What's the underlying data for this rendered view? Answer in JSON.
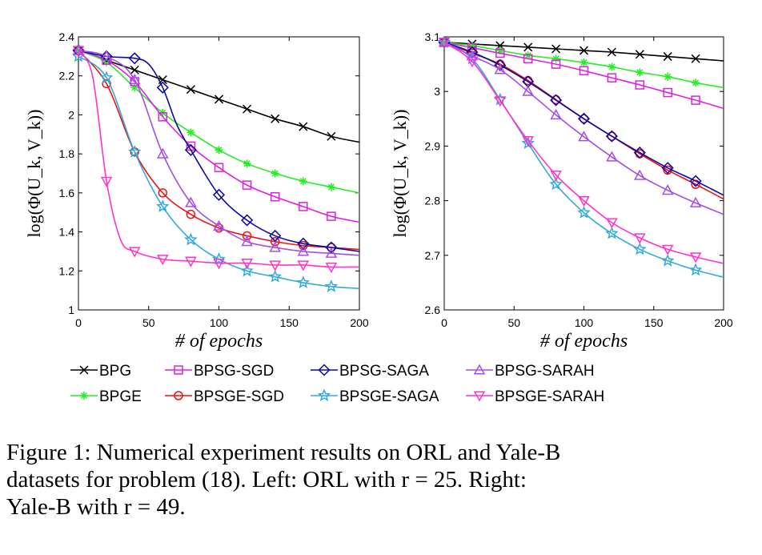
{
  "chart_data": [
    {
      "type": "line",
      "ylabel": "log(Φ(U_k, V_k))",
      "xlabel": "# of epochs",
      "xlim": [
        0,
        200
      ],
      "ylim": [
        1,
        2.4
      ],
      "xticks": [
        0,
        50,
        100,
        150,
        200
      ],
      "yticks": [
        1,
        1.2,
        1.4,
        1.6,
        1.8,
        2,
        2.2,
        2.4
      ],
      "ytick_labels": [
        "1",
        "1.2",
        "1.4",
        "1.6",
        "1.8",
        "2",
        "2.2",
        "2.4"
      ],
      "grid": false,
      "series": [
        {
          "name": "BPG",
          "x": [
            0,
            20,
            40,
            60,
            80,
            100,
            120,
            140,
            160,
            180,
            200
          ],
          "y": [
            2.33,
            2.28,
            2.23,
            2.18,
            2.13,
            2.08,
            2.03,
            1.98,
            1.94,
            1.89,
            1.86
          ]
        },
        {
          "name": "BPGE",
          "x": [
            0,
            20,
            40,
            60,
            80,
            100,
            120,
            140,
            160,
            180,
            200
          ],
          "y": [
            2.33,
            2.27,
            2.14,
            2.01,
            1.91,
            1.82,
            1.75,
            1.7,
            1.66,
            1.63,
            1.6
          ]
        },
        {
          "name": "BPSG-SGD",
          "x": [
            0,
            20,
            40,
            60,
            80,
            100,
            120,
            140,
            160,
            180,
            200
          ],
          "y": [
            2.33,
            2.28,
            2.17,
            1.99,
            1.84,
            1.73,
            1.64,
            1.58,
            1.53,
            1.48,
            1.45
          ]
        },
        {
          "name": "BPSGE-SGD",
          "x": [
            0,
            20,
            40,
            60,
            80,
            100,
            120,
            140,
            160,
            180,
            200
          ],
          "y": [
            2.33,
            2.16,
            1.81,
            1.6,
            1.49,
            1.42,
            1.38,
            1.35,
            1.33,
            1.32,
            1.31
          ]
        },
        {
          "name": "BPSG-SAGA",
          "x": [
            0,
            20,
            40,
            50,
            60,
            70,
            80,
            100,
            120,
            140,
            160,
            180,
            200
          ],
          "y": [
            2.33,
            2.3,
            2.29,
            2.26,
            2.14,
            1.95,
            1.82,
            1.59,
            1.46,
            1.38,
            1.34,
            1.32,
            1.3
          ]
        },
        {
          "name": "BPSGE-SAGA",
          "x": [
            0,
            20,
            40,
            60,
            80,
            100,
            120,
            140,
            160,
            180,
            200
          ],
          "y": [
            2.3,
            2.19,
            1.81,
            1.53,
            1.36,
            1.26,
            1.2,
            1.17,
            1.14,
            1.12,
            1.11
          ]
        },
        {
          "name": "BPSG-SARAH",
          "x": [
            0,
            20,
            40,
            60,
            80,
            100,
            120,
            140,
            160,
            180,
            200
          ],
          "y": [
            2.33,
            2.3,
            2.18,
            1.8,
            1.55,
            1.43,
            1.35,
            1.32,
            1.3,
            1.29,
            1.28
          ]
        },
        {
          "name": "BPSGE-SARAH",
          "x": [
            0,
            10,
            20,
            30,
            40,
            60,
            80,
            100,
            120,
            140,
            160,
            180,
            200
          ],
          "y": [
            2.33,
            2.2,
            1.66,
            1.36,
            1.3,
            1.26,
            1.25,
            1.24,
            1.24,
            1.23,
            1.23,
            1.22,
            1.22
          ]
        }
      ]
    },
    {
      "type": "line",
      "ylabel": "log(Φ(U_k, V_k))",
      "xlabel": "# of epochs",
      "xlim": [
        0,
        200
      ],
      "ylim": [
        2.6,
        3.1
      ],
      "xticks": [
        0,
        50,
        100,
        150,
        200
      ],
      "yticks": [
        2.6,
        2.7,
        2.8,
        2.9,
        3,
        3.1
      ],
      "ytick_labels": [
        "2.6",
        "2.7",
        "2.8",
        "2.9",
        "3",
        "3.1"
      ],
      "grid": false,
      "series": [
        {
          "name": "BPG",
          "x": [
            0,
            20,
            40,
            60,
            80,
            100,
            120,
            140,
            160,
            180,
            200
          ],
          "y": [
            3.09,
            3.087,
            3.084,
            3.081,
            3.078,
            3.075,
            3.072,
            3.068,
            3.064,
            3.06,
            3.056
          ]
        },
        {
          "name": "BPGE",
          "x": [
            0,
            20,
            40,
            60,
            80,
            100,
            120,
            140,
            160,
            180,
            200
          ],
          "y": [
            3.09,
            3.084,
            3.075,
            3.066,
            3.06,
            3.053,
            3.045,
            3.035,
            3.027,
            3.016,
            3.007
          ]
        },
        {
          "name": "BPSG-SGD",
          "x": [
            0,
            20,
            40,
            60,
            80,
            100,
            120,
            140,
            160,
            180,
            200
          ],
          "y": [
            3.09,
            3.08,
            3.07,
            3.06,
            3.05,
            3.038,
            3.025,
            3.012,
            2.998,
            2.984,
            2.969
          ]
        },
        {
          "name": "BPSGE-SGD",
          "x": [
            0,
            20,
            40,
            60,
            80,
            100,
            120,
            140,
            160,
            180,
            200
          ],
          "y": [
            3.09,
            3.07,
            3.05,
            3.02,
            2.985,
            2.95,
            2.918,
            2.886,
            2.856,
            2.83,
            2.803
          ]
        },
        {
          "name": "BPSG-SAGA",
          "x": [
            0,
            20,
            40,
            60,
            80,
            100,
            120,
            140,
            160,
            180,
            200
          ],
          "y": [
            3.09,
            3.072,
            3.048,
            3.018,
            2.984,
            2.95,
            2.918,
            2.888,
            2.86,
            2.836,
            2.81
          ]
        },
        {
          "name": "BPSGE-SAGA",
          "x": [
            0,
            20,
            40,
            60,
            80,
            100,
            120,
            140,
            160,
            180,
            200
          ],
          "y": [
            3.09,
            3.06,
            2.985,
            2.905,
            2.83,
            2.778,
            2.74,
            2.711,
            2.69,
            2.673,
            2.66
          ]
        },
        {
          "name": "BPSG-SARAH",
          "x": [
            0,
            20,
            40,
            60,
            80,
            100,
            120,
            140,
            160,
            180,
            200
          ],
          "y": [
            3.09,
            3.065,
            3.04,
            3.0,
            2.957,
            2.917,
            2.88,
            2.846,
            2.819,
            2.796,
            2.775
          ]
        },
        {
          "name": "BPSGE-SARAH",
          "x": [
            0,
            20,
            40,
            60,
            80,
            100,
            120,
            140,
            160,
            180,
            200
          ],
          "y": [
            3.09,
            3.055,
            2.983,
            2.91,
            2.847,
            2.8,
            2.76,
            2.732,
            2.711,
            2.697,
            2.685
          ]
        }
      ]
    }
  ],
  "legend": [
    {
      "name": "BPG",
      "label": "BPG",
      "color": "#000000",
      "marker": "x"
    },
    {
      "name": "BPSG-SGD",
      "label": "BPSG-SGD",
      "color": "#e020e0",
      "marker": "square"
    },
    {
      "name": "BPSG-SAGA",
      "label": "BPSG-SAGA",
      "color": "#0a0aa0",
      "marker": "diamond"
    },
    {
      "name": "BPSG-SARAH",
      "label": "BPSG-SARAH",
      "color": "#a64de8",
      "marker": "triangle-up"
    },
    {
      "name": "BPGE",
      "label": "BPGE",
      "color": "#22ee22",
      "marker": "asterisk"
    },
    {
      "name": "BPSGE-SGD",
      "label": "BPSGE-SGD",
      "color": "#ee1111",
      "marker": "circle"
    },
    {
      "name": "BPSGE-SAGA",
      "label": "BPSGE-SAGA",
      "color": "#33aadd",
      "marker": "star"
    },
    {
      "name": "BPSGE-SARAH",
      "label": "BPSGE-SARAH",
      "color": "#ff33cc",
      "marker": "triangle-down"
    }
  ],
  "caption": {
    "line1": "Figure 1: Numerical experiment results on ORL and Yale-B",
    "line2": "datasets for problem (18). Left: ORL with r = 25. Right:",
    "line3": "Yale-B with r = 49."
  }
}
